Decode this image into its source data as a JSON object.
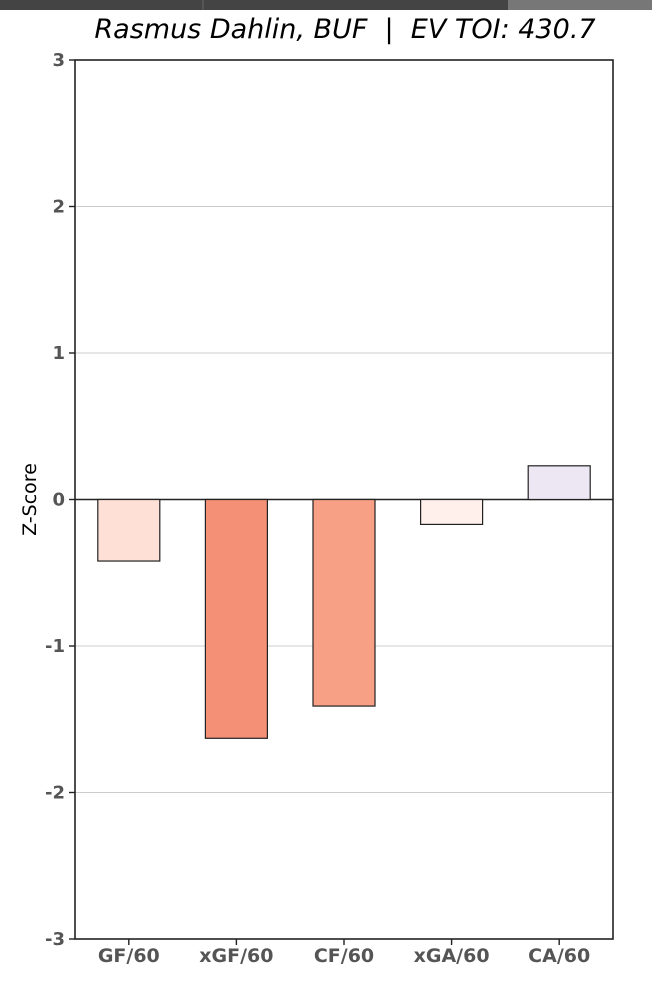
{
  "chart_data": {
    "type": "bar",
    "title": "Rasmus Dahlin, BUF  |  EV TOI: 430.7",
    "xlabel": "",
    "ylabel": "Z-Score",
    "categories": [
      "GF/60",
      "xGF/60",
      "CF/60",
      "xGA/60",
      "CA/60"
    ],
    "values": [
      -0.42,
      -1.63,
      -1.41,
      -0.17,
      0.23
    ],
    "colors": [
      "#fee0d6",
      "#f39076",
      "#f7a086",
      "#fff0ec",
      "#ede7f4"
    ],
    "ylim": [
      -3,
      3
    ],
    "yticks": [
      3,
      2,
      1,
      0,
      -1,
      -2,
      -3
    ],
    "grid": true,
    "legend": "none"
  },
  "topbar": {
    "colors": [
      "#444444",
      "#555555",
      "#444444",
      "#777777"
    ]
  }
}
